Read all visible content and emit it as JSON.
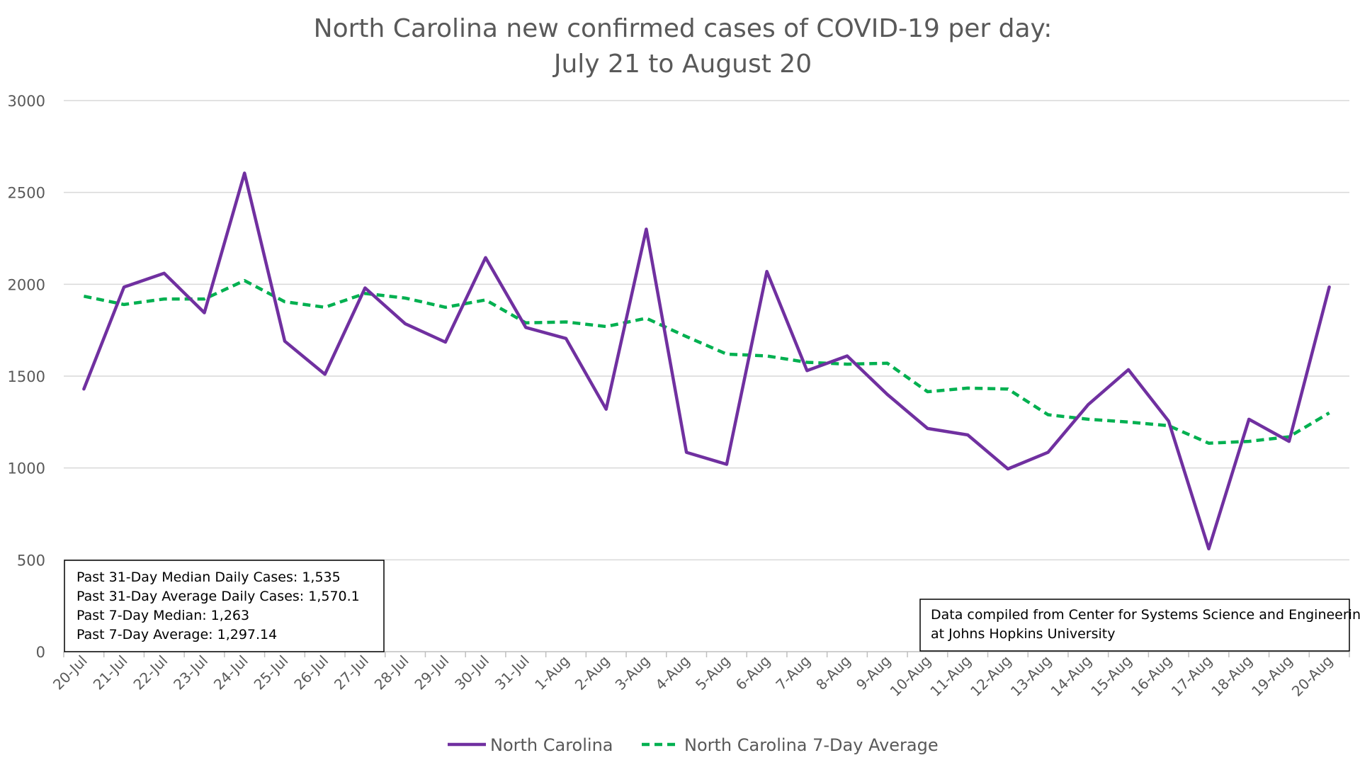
{
  "chart_data": {
    "type": "line",
    "title_lines": [
      "North Carolina new confirmed cases of COVID-19 per day:",
      "July 21 to August 20"
    ],
    "xlabel": "",
    "ylabel": "",
    "ylim": [
      0,
      3000
    ],
    "yticks": [
      0,
      500,
      1000,
      1500,
      2000,
      2500,
      3000
    ],
    "grid": true,
    "legend_placement": "bottom-center",
    "categories": [
      "20-Jul",
      "21-Jul",
      "22-Jul",
      "23-Jul",
      "24-Jul",
      "25-Jul",
      "26-Jul",
      "27-Jul",
      "28-Jul",
      "29-Jul",
      "30-Jul",
      "31-Jul",
      "1-Aug",
      "2-Aug",
      "3-Aug",
      "4-Aug",
      "5-Aug",
      "6-Aug",
      "7-Aug",
      "8-Aug",
      "9-Aug",
      "10-Aug",
      "11-Aug",
      "12-Aug",
      "13-Aug",
      "14-Aug",
      "15-Aug",
      "16-Aug",
      "17-Aug",
      "18-Aug",
      "19-Aug",
      "20-Aug"
    ],
    "series": [
      {
        "name": "North Carolina",
        "color": "#7030a0",
        "style": "solid",
        "values": [
          1430,
          1985,
          2060,
          1845,
          2605,
          1690,
          1510,
          1980,
          1785,
          1685,
          2145,
          1765,
          1705,
          1320,
          2300,
          1085,
          1020,
          2070,
          1530,
          1610,
          1400,
          1215,
          1180,
          995,
          1085,
          1345,
          1535,
          1255,
          560,
          1265,
          1145,
          1985
        ]
      },
      {
        "name": "North Carolina 7-Day Average",
        "color": "#00b050",
        "style": "dashed",
        "values": [
          1935,
          1890,
          1920,
          1920,
          2020,
          1905,
          1875,
          1950,
          1925,
          1875,
          1915,
          1790,
          1795,
          1770,
          1815,
          1715,
          1620,
          1610,
          1575,
          1565,
          1570,
          1415,
          1435,
          1430,
          1290,
          1265,
          1250,
          1230,
          1135,
          1145,
          1170,
          1300
        ]
      }
    ]
  },
  "stats_box": {
    "lines": [
      "Past 31-Day Median Daily Cases: 1,535",
      "Past 31-Day Average Daily Cases: 1,570.1",
      "Past 7-Day Median: 1,263",
      "Past 7-Day Average: 1,297.14"
    ]
  },
  "source_box": {
    "lines": [
      "Data compiled from Center for Systems Science and Engineering",
      "at Johns Hopkins University"
    ]
  },
  "colors": {
    "grid": "#d9d9d9",
    "axis": "#bfbfbf",
    "text": "#595959"
  }
}
